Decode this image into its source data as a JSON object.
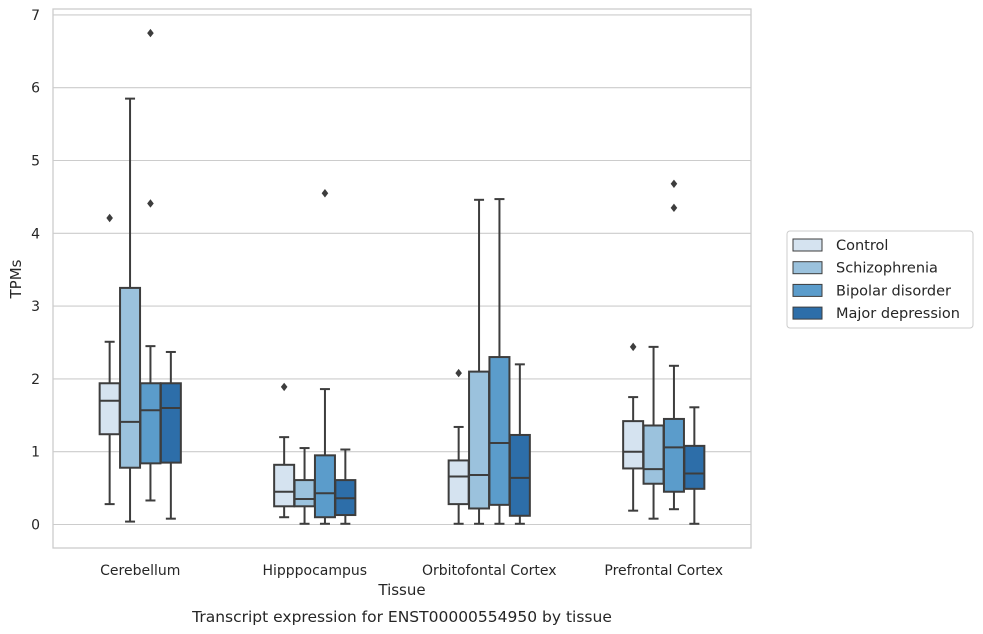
{
  "caption": "Transcript expression for ENST00000554950 by tissue",
  "chart_data": {
    "type": "box",
    "title": "",
    "xlabel": "Tissue",
    "ylabel": "TPMs",
    "ylim": [
      -0.32,
      7.1
    ],
    "yticks": [
      0,
      1,
      2,
      3,
      4,
      5,
      6,
      7
    ],
    "grid": "horizontal",
    "legend_position": "right",
    "categories": [
      "Cerebellum",
      "Hipppocampus",
      "Orbitofontal Cortex",
      "Prefrontal Cortex"
    ],
    "series": [
      {
        "name": "Control",
        "color": "#d5e3f0",
        "boxes": [
          {
            "whislo": 0.28,
            "q1": 1.24,
            "med": 1.7,
            "q3": 1.94,
            "whishi": 2.51,
            "fliers": [
              4.21
            ]
          },
          {
            "whislo": 0.1,
            "q1": 0.25,
            "med": 0.45,
            "q3": 0.82,
            "whishi": 1.2,
            "fliers": [
              1.89
            ]
          },
          {
            "whislo": 0.01,
            "q1": 0.28,
            "med": 0.66,
            "q3": 0.88,
            "whishi": 1.34,
            "fliers": [
              2.08
            ]
          },
          {
            "whislo": 0.19,
            "q1": 0.77,
            "med": 1.0,
            "q3": 1.42,
            "whishi": 1.75,
            "fliers": [
              2.44
            ]
          }
        ]
      },
      {
        "name": "Schizophrenia",
        "color": "#9bc2dd",
        "boxes": [
          {
            "whislo": 0.04,
            "q1": 0.78,
            "med": 1.41,
            "q3": 3.25,
            "whishi": 5.85,
            "fliers": []
          },
          {
            "whislo": 0.01,
            "q1": 0.25,
            "med": 0.35,
            "q3": 0.61,
            "whishi": 1.05,
            "fliers": []
          },
          {
            "whislo": 0.01,
            "q1": 0.22,
            "med": 0.68,
            "q3": 2.1,
            "whishi": 4.46,
            "fliers": []
          },
          {
            "whislo": 0.08,
            "q1": 0.56,
            "med": 0.76,
            "q3": 1.36,
            "whishi": 2.44,
            "fliers": []
          }
        ]
      },
      {
        "name": "Bipolar disorder",
        "color": "#5b9ccb",
        "boxes": [
          {
            "whislo": 0.33,
            "q1": 0.84,
            "med": 1.57,
            "q3": 1.94,
            "whishi": 2.45,
            "fliers": [
              4.41,
              6.75
            ]
          },
          {
            "whislo": 0.01,
            "q1": 0.1,
            "med": 0.43,
            "q3": 0.95,
            "whishi": 1.86,
            "fliers": [
              4.55
            ]
          },
          {
            "whislo": 0.01,
            "q1": 0.27,
            "med": 1.12,
            "q3": 2.3,
            "whishi": 4.47,
            "fliers": []
          },
          {
            "whislo": 0.21,
            "q1": 0.45,
            "med": 1.06,
            "q3": 1.45,
            "whishi": 2.18,
            "fliers": [
              4.35,
              4.68
            ]
          }
        ]
      },
      {
        "name": "Major depression",
        "color": "#2d6ea9",
        "boxes": [
          {
            "whislo": 0.08,
            "q1": 0.85,
            "med": 1.6,
            "q3": 1.94,
            "whishi": 2.37,
            "fliers": []
          },
          {
            "whislo": 0.01,
            "q1": 0.13,
            "med": 0.36,
            "q3": 0.61,
            "whishi": 1.03,
            "fliers": []
          },
          {
            "whislo": 0.01,
            "q1": 0.12,
            "med": 0.64,
            "q3": 1.23,
            "whishi": 2.2,
            "fliers": []
          },
          {
            "whislo": 0.01,
            "q1": 0.49,
            "med": 0.7,
            "q3": 1.08,
            "whishi": 1.61,
            "fliers": []
          }
        ]
      }
    ]
  }
}
